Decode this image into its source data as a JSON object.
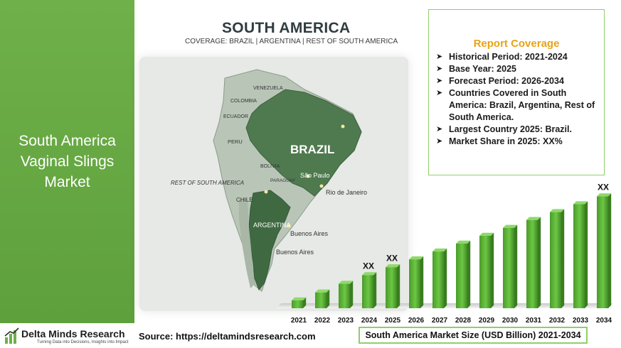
{
  "left_title": "South America Vaginal Slings Market",
  "logo": {
    "name": "Delta Minds Research",
    "tagline": "Turning Data into Decisions, Insights into Impact"
  },
  "source": "Source: https://deltamindsresearch.com",
  "map": {
    "title": "SOUTH AMERICA",
    "coverage": "COVERAGE: BRAZIL | ARGENTINA | REST OF SOUTH AMERICA",
    "labels": {
      "venezuela": "VENEZUELA",
      "colombia": "COLOMBIA",
      "ecuador": "ECUADOR",
      "peru": "PERU",
      "bolivia": "BOLIVIA",
      "paraguay": "PARAGUAY",
      "brazil": "BRAZIL",
      "sao_paulo": "São Paulo",
      "rio": "Rio de Janeiro",
      "rest": "REST OF SOUTH AMERICA",
      "chile": "CHILE",
      "argentina": "ARGENTINA",
      "buenos_aires_1": "Buenos Aires",
      "buenos_aires_2": "Buenos Aires"
    }
  },
  "coverage": {
    "title": "Report Coverage",
    "items": [
      "Historical Period: 2021-2024",
      "Base Year: 2025",
      "Forecast Period: 2026-2034",
      "Countries Covered in South America: Brazil, Argentina, Rest of South America.",
      "Largest Country 2025: Brazil.",
      "Market Share in 2025: XX%"
    ]
  },
  "caption": "South America Market Size (USD Billion) 2021-2034",
  "colors": {
    "bar": "#5cb535",
    "panel": "#6fb04a",
    "accent": "#e8a317"
  },
  "chart_data": {
    "type": "bar",
    "categories": [
      "2021",
      "2022",
      "2023",
      "2024",
      "2025",
      "2026",
      "2027",
      "2028",
      "2029",
      "2030",
      "2031",
      "2032",
      "2033",
      "2034"
    ],
    "values": [
      1.0,
      2.0,
      3.1,
      4.2,
      5.2,
      6.2,
      7.2,
      8.2,
      9.2,
      10.2,
      11.2,
      12.2,
      13.2,
      14.2
    ],
    "data_labels": {
      "2024": "XX",
      "2025": "XX",
      "2034": "XX"
    },
    "ylim": [
      0,
      15.5
    ],
    "grid": false,
    "legend": "none"
  }
}
